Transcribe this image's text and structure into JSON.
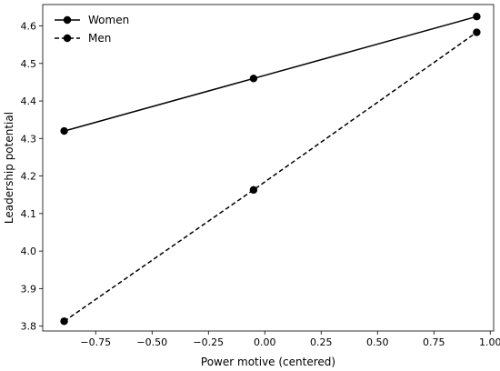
{
  "chart_data": {
    "type": "line",
    "title": "",
    "xlabel": "Power motive (centered)",
    "ylabel": "Leadership potential",
    "xlim": [
      -0.985,
      1.015
    ],
    "ylim": [
      3.787,
      4.657
    ],
    "xticks": [
      "-0.75",
      "-0.50",
      "-0.25",
      "0.00",
      "0.25",
      "0.50",
      "0.75",
      "1.00"
    ],
    "yticks": [
      "3.8",
      "3.9",
      "4.0",
      "4.1",
      "4.2",
      "4.3",
      "4.4",
      "4.5",
      "4.6"
    ],
    "grid": false,
    "legend_position": "top-left",
    "x": [
      -0.89,
      -0.05,
      0.94
    ],
    "series": [
      {
        "name": "Women",
        "values": [
          4.32,
          4.46,
          4.625
        ],
        "style": "solid",
        "color": "#000000"
      },
      {
        "name": "Men",
        "values": [
          3.813,
          4.163,
          4.583
        ],
        "style": "dashed",
        "color": "#000000"
      }
    ]
  }
}
